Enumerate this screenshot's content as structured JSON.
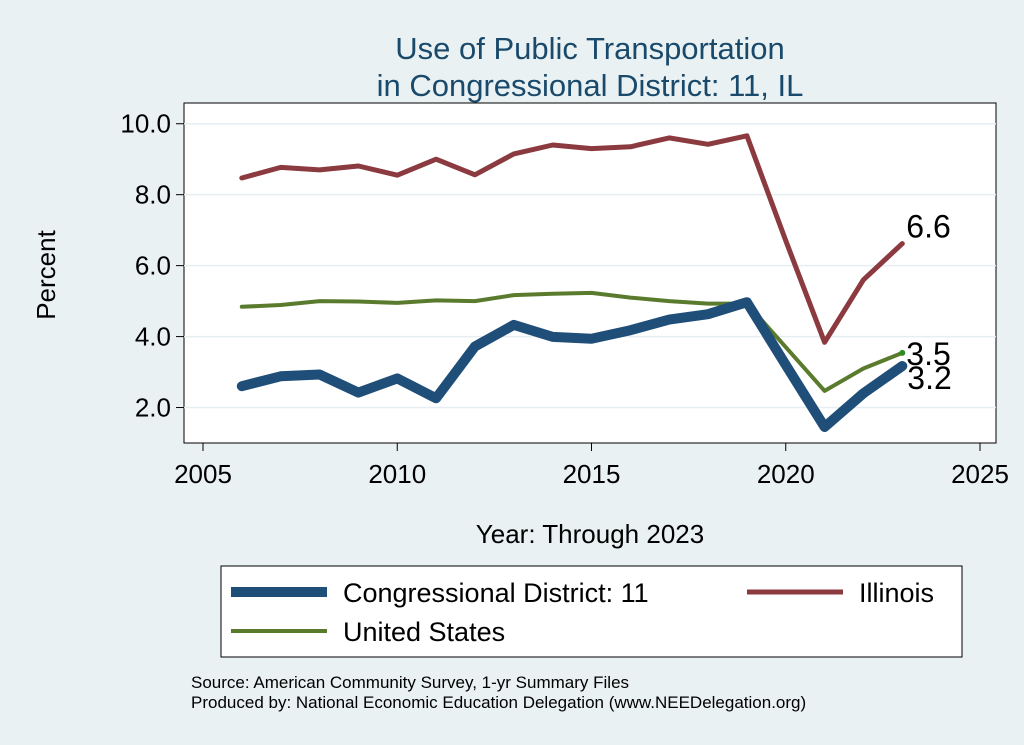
{
  "chart_data": {
    "type": "line",
    "title": [
      "Use of Public Transportation",
      "in Congressional District: 11, IL"
    ],
    "xlabel": "Year: Through 2023",
    "ylabel": "Percent",
    "xlim": [
      2005,
      2025
    ],
    "ylim": [
      1.0,
      10.5
    ],
    "x_ticks": [
      2005,
      2010,
      2015,
      2020,
      2025
    ],
    "x_tick_labels": [
      "2005",
      "2010",
      "2015",
      "2020",
      "2025"
    ],
    "y_ticks": [
      2,
      4,
      6,
      8,
      10
    ],
    "y_tick_labels": [
      "2.0",
      "4.0",
      "6.0",
      "8.0",
      "10.0"
    ],
    "grid": true,
    "legend_position": "bottom",
    "x": [
      2006,
      2007,
      2008,
      2009,
      2010,
      2011,
      2012,
      2013,
      2014,
      2015,
      2016,
      2017,
      2018,
      2019,
      2020,
      2021,
      2022,
      2023
    ],
    "series": [
      {
        "name": "Congressional District: 11",
        "color": "#1f4e79",
        "values": [
          2.6,
          2.88,
          2.93,
          2.42,
          2.82,
          2.26,
          3.72,
          4.33,
          3.99,
          3.94,
          4.18,
          4.48,
          4.63,
          4.97,
          3.2,
          1.45,
          2.4,
          3.17
        ],
        "end_label": "3.2"
      },
      {
        "name": "Illinois",
        "color": "#8b3a3f",
        "values": [
          8.47,
          8.77,
          8.7,
          8.81,
          8.55,
          9.0,
          8.56,
          9.15,
          9.4,
          9.3,
          9.35,
          9.6,
          9.42,
          9.66,
          6.7,
          3.84,
          5.6,
          6.62
        ],
        "end_label": "6.6"
      },
      {
        "name": "United States",
        "color": "#5a7b2e",
        "values": [
          4.84,
          4.89,
          5.0,
          4.99,
          4.95,
          5.02,
          5.0,
          5.17,
          5.21,
          5.23,
          5.1,
          5.0,
          4.93,
          4.93,
          3.7,
          2.47,
          3.1,
          3.54
        ],
        "end_label": "3.5"
      }
    ],
    "notes": [
      "Source: American Community Survey, 1-yr Summary Files",
      "Produced by: National Economic Education Delegation (www.NEEDelegation.org)"
    ]
  }
}
